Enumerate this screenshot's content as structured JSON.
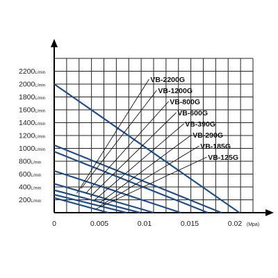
{
  "chart_data": {
    "type": "line",
    "title": "",
    "xlabel": "(Mpa)",
    "ylabel": "",
    "y_unit": "L/min",
    "xlim": [
      0,
      0.022
    ],
    "ylim": [
      0,
      2400
    ],
    "grid": true,
    "x_ticks": [
      "0",
      "0.005",
      "0.01",
      "0.015",
      "0.02"
    ],
    "x_tick_values": [
      0,
      0.005,
      0.01,
      0.015,
      0.02
    ],
    "y_ticks": [
      {
        "num": "200",
        "unit": "L/min",
        "value": 200
      },
      {
        "num": "400",
        "unit": "L/min",
        "value": 400
      },
      {
        "num": "600",
        "unit": "L/min",
        "value": 600
      },
      {
        "num": "800",
        "unit": "L/min",
        "value": 800
      },
      {
        "num": "1000",
        "unit": "L/min",
        "value": 1000
      },
      {
        "num": "1200",
        "unit": "L/min",
        "value": 1200
      },
      {
        "num": "1400",
        "unit": "L/min",
        "value": 1400
      },
      {
        "num": "1600",
        "unit": "L/min",
        "value": 1600
      },
      {
        "num": "1800",
        "unit": "L/min",
        "value": 1800
      },
      {
        "num": "2000",
        "unit": "L/min",
        "value": 2000
      },
      {
        "num": "2200",
        "unit": "L/min",
        "value": 2200
      }
    ],
    "series": [
      {
        "name": "VB-2200G",
        "x": [
          0,
          0.0205
        ],
        "y": [
          2000,
          0
        ],
        "anchor": [
          0.0025,
          300
        ]
      },
      {
        "name": "VB-1200G",
        "x": [
          0,
          0.0185
        ],
        "y": [
          1050,
          0
        ],
        "anchor": [
          0.003,
          380
        ]
      },
      {
        "name": "VB-800G",
        "x": [
          0,
          0.017
        ],
        "y": [
          950,
          0
        ],
        "anchor": [
          0.0035,
          300
        ]
      },
      {
        "name": "VB-600G",
        "x": [
          0,
          0.014
        ],
        "y": [
          650,
          0
        ],
        "anchor": [
          0.004,
          250
        ]
      },
      {
        "name": "VB-390G",
        "x": [
          0,
          0.011
        ],
        "y": [
          450,
          0
        ],
        "anchor": [
          0.0045,
          200
        ]
      },
      {
        "name": "VB-290G",
        "x": [
          0,
          0.0095
        ],
        "y": [
          350,
          0
        ],
        "anchor": [
          0.005,
          150
        ]
      },
      {
        "name": "VB-185G",
        "x": [
          0,
          0.008
        ],
        "y": [
          280,
          0
        ],
        "anchor": [
          0.005,
          100
        ]
      },
      {
        "name": "VB-125G",
        "x": [
          0,
          0.006
        ],
        "y": [
          230,
          0
        ],
        "anchor": [
          0.0045,
          50
        ]
      }
    ],
    "colors": {
      "curve": "#1f4e8c",
      "pointer": "#111111",
      "grid": "#222222"
    }
  }
}
